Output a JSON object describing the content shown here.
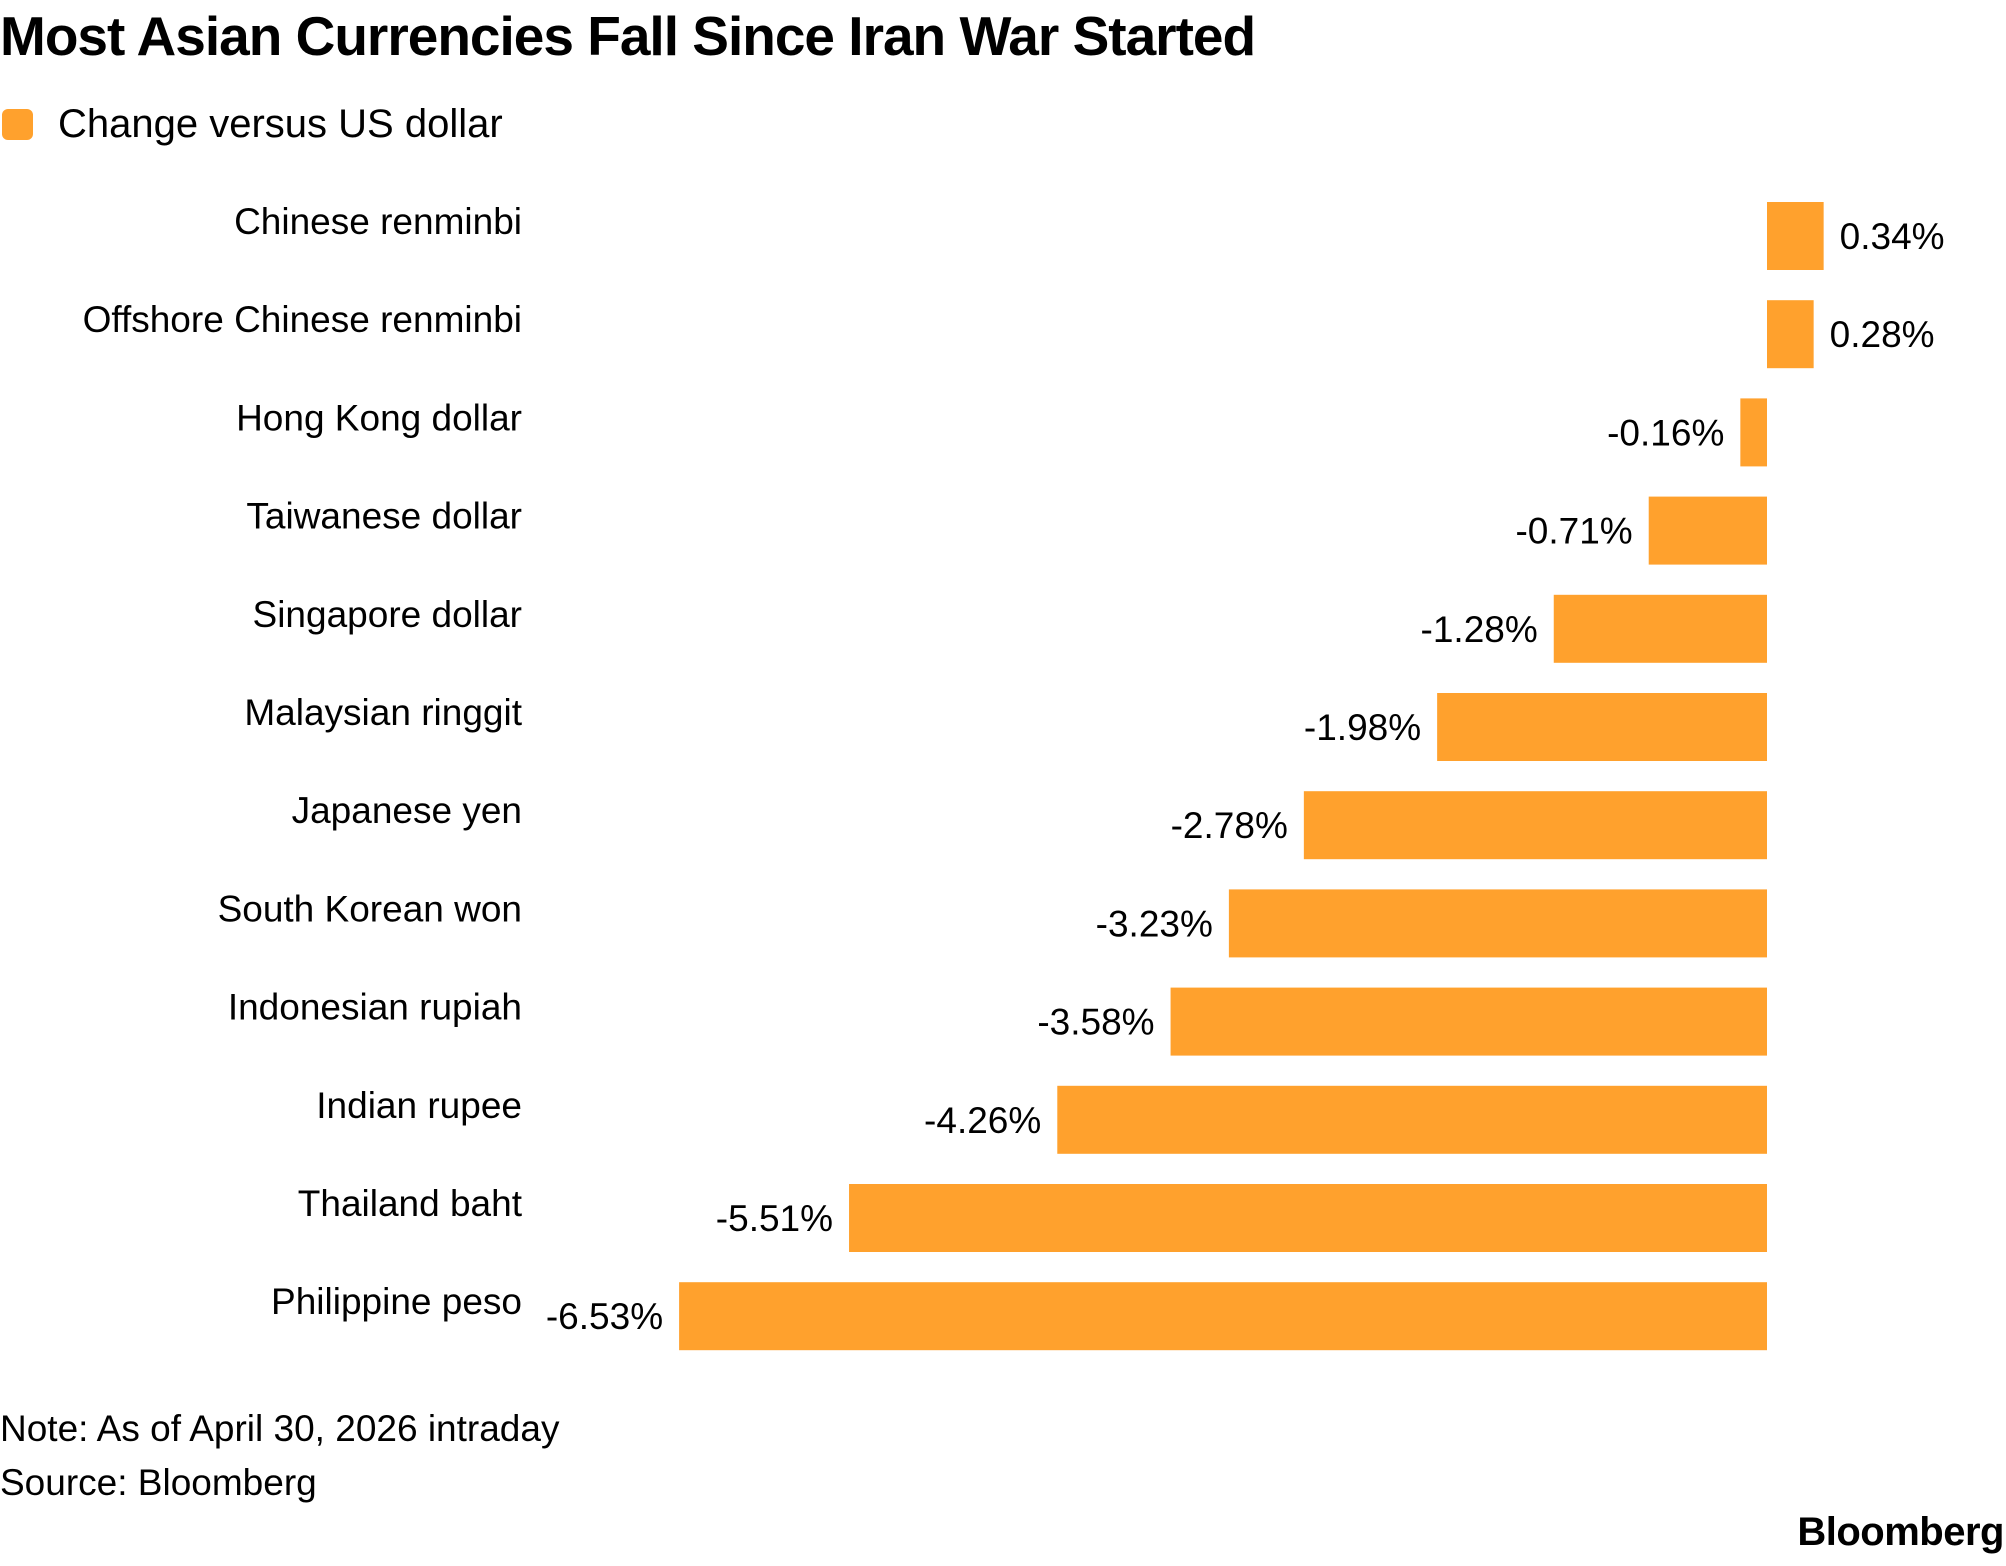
{
  "colors": {
    "bar": "#FFA12D",
    "text": "#000000",
    "background": "#FFFFFF"
  },
  "footer": {
    "note": "Note: As of April 30, 2026 intraday",
    "source": "Source: Bloomberg",
    "brand": "Bloomberg"
  },
  "chart_data": {
    "type": "bar",
    "orientation": "horizontal",
    "title": "Most Asian Currencies Fall Since Iran War Started",
    "legend": {
      "position": "top-left",
      "entries": [
        "Change versus US dollar"
      ]
    },
    "grid": false,
    "unit": "%",
    "categories": [
      "Chinese renminbi",
      "Offshore Chinese renminbi",
      "Hong Kong dollar",
      "Taiwanese dollar",
      "Singapore dollar",
      "Malaysian ringgit",
      "Japanese yen",
      "South Korean won",
      "Indonesian rupiah",
      "Indian rupee",
      "Thailand baht",
      "Philippine peso"
    ],
    "series": [
      {
        "name": "Change versus US dollar",
        "values": [
          0.34,
          0.28,
          -0.16,
          -0.71,
          -1.28,
          -1.98,
          -2.78,
          -3.23,
          -3.58,
          -4.26,
          -5.51,
          -6.53
        ],
        "labels": [
          "0.34%",
          "0.28%",
          "-0.16%",
          "-0.71%",
          "-1.28%",
          "-1.98%",
          "-2.78%",
          "-3.23%",
          "-3.58%",
          "-4.26%",
          "-5.51%",
          "-6.53%"
        ]
      }
    ],
    "xlim": [
      -6.53,
      0.34
    ]
  }
}
